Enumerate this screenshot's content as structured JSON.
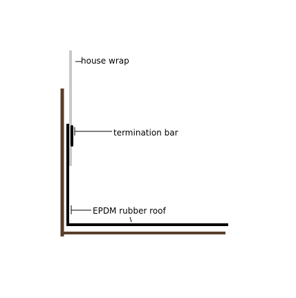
{
  "labels": {
    "house_wrap": "house wrap",
    "termination_bar": "termination bar",
    "epdm": "EPDM rubber roof"
  },
  "colors": {
    "background": "#ffffff",
    "wood": "#5a3e2b",
    "house_wrap": "#c8c8c8",
    "membrane": "#000000",
    "leader": "#000000"
  }
}
